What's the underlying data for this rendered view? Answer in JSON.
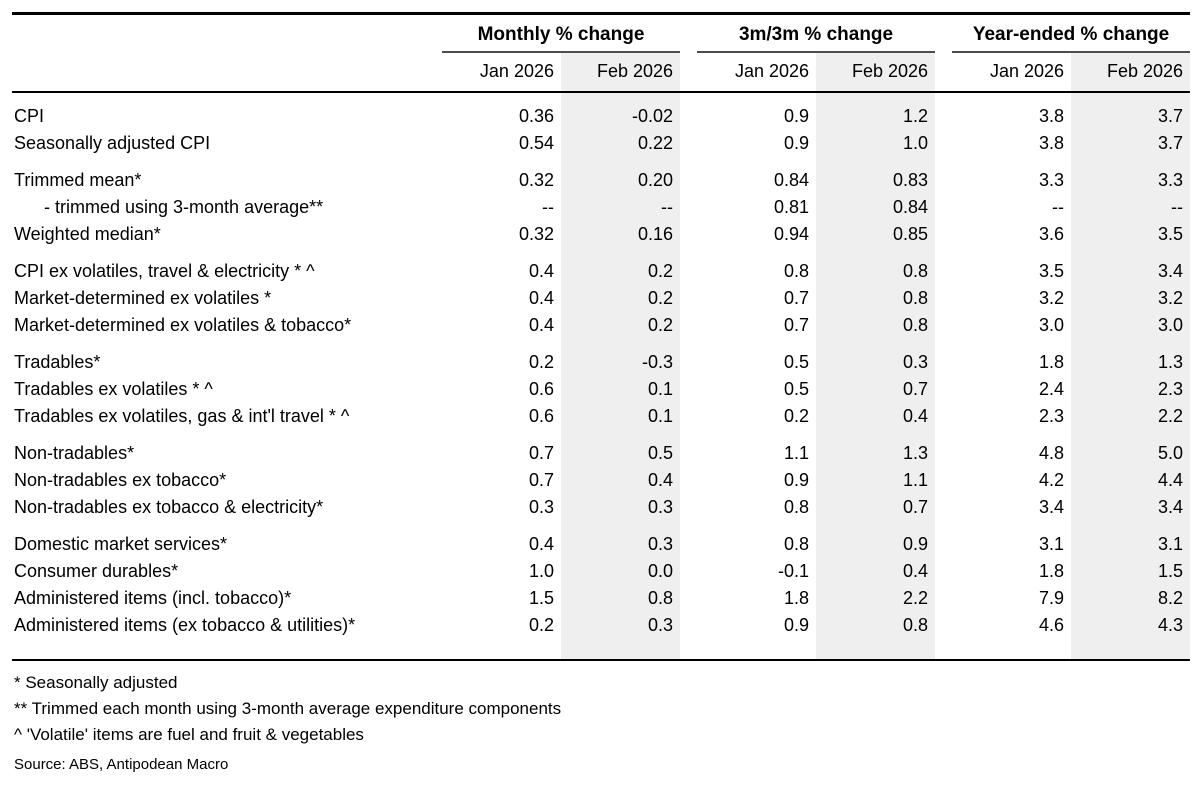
{
  "chart_data": {
    "type": "table",
    "column_groups": [
      {
        "label": "Monthly % change",
        "sub_columns": [
          "Jan 2026",
          "Feb 2026"
        ]
      },
      {
        "label": "3m/3m % change",
        "sub_columns": [
          "Jan 2026",
          "Feb 2026"
        ]
      },
      {
        "label": "Year-ended % change",
        "sub_columns": [
          "Jan 2026",
          "Feb 2026"
        ]
      }
    ],
    "sections": [
      {
        "rows": [
          {
            "label": "CPI",
            "indent": false,
            "values": [
              "0.36",
              "-0.02",
              "0.9",
              "1.2",
              "3.8",
              "3.7"
            ]
          },
          {
            "label": "Seasonally adjusted CPI",
            "indent": false,
            "values": [
              "0.54",
              "0.22",
              "0.9",
              "1.0",
              "3.8",
              "3.7"
            ]
          }
        ]
      },
      {
        "rows": [
          {
            "label": "Trimmed mean*",
            "indent": false,
            "values": [
              "0.32",
              "0.20",
              "0.84",
              "0.83",
              "3.3",
              "3.3"
            ]
          },
          {
            "label": "- trimmed using 3-month average**",
            "indent": true,
            "values": [
              "--",
              "--",
              "0.81",
              "0.84",
              "--",
              "--"
            ]
          },
          {
            "label": "Weighted median*",
            "indent": false,
            "values": [
              "0.32",
              "0.16",
              "0.94",
              "0.85",
              "3.6",
              "3.5"
            ]
          }
        ]
      },
      {
        "rows": [
          {
            "label": "CPI ex volatiles, travel & electricity * ^",
            "indent": false,
            "values": [
              "0.4",
              "0.2",
              "0.8",
              "0.8",
              "3.5",
              "3.4"
            ]
          },
          {
            "label": "Market-determined ex volatiles *",
            "indent": false,
            "values": [
              "0.4",
              "0.2",
              "0.7",
              "0.8",
              "3.2",
              "3.2"
            ]
          },
          {
            "label": "Market-determined ex volatiles & tobacco*",
            "indent": false,
            "values": [
              "0.4",
              "0.2",
              "0.7",
              "0.8",
              "3.0",
              "3.0"
            ]
          }
        ]
      },
      {
        "rows": [
          {
            "label": "Tradables*",
            "indent": false,
            "values": [
              "0.2",
              "-0.3",
              "0.5",
              "0.3",
              "1.8",
              "1.3"
            ]
          },
          {
            "label": "Tradables ex volatiles * ^",
            "indent": false,
            "values": [
              "0.6",
              "0.1",
              "0.5",
              "0.7",
              "2.4",
              "2.3"
            ]
          },
          {
            "label": "Tradables ex volatiles, gas & int'l travel * ^",
            "indent": false,
            "values": [
              "0.6",
              "0.1",
              "0.2",
              "0.4",
              "2.3",
              "2.2"
            ]
          }
        ]
      },
      {
        "rows": [
          {
            "label": "Non-tradables*",
            "indent": false,
            "values": [
              "0.7",
              "0.5",
              "1.1",
              "1.3",
              "4.8",
              "5.0"
            ]
          },
          {
            "label": "Non-tradables ex tobacco*",
            "indent": false,
            "values": [
              "0.7",
              "0.4",
              "0.9",
              "1.1",
              "4.2",
              "4.4"
            ]
          },
          {
            "label": "Non-tradables ex tobacco & electricity*",
            "indent": false,
            "values": [
              "0.3",
              "0.3",
              "0.8",
              "0.7",
              "3.4",
              "3.4"
            ]
          }
        ]
      },
      {
        "rows": [
          {
            "label": "Domestic market services*",
            "indent": false,
            "values": [
              "0.4",
              "0.3",
              "0.8",
              "0.9",
              "3.1",
              "3.1"
            ]
          },
          {
            "label": "Consumer durables*",
            "indent": false,
            "values": [
              "1.0",
              "0.0",
              "-0.1",
              "0.4",
              "1.8",
              "1.5"
            ]
          },
          {
            "label": "Administered items (incl. tobacco)*",
            "indent": false,
            "values": [
              "1.5",
              "0.8",
              "1.8",
              "2.2",
              "7.9",
              "8.2"
            ]
          },
          {
            "label": "Administered items (ex tobacco & utilities)*",
            "indent": false,
            "values": [
              "0.2",
              "0.3",
              "0.9",
              "0.8",
              "4.6",
              "4.3"
            ]
          }
        ]
      }
    ],
    "footnotes": [
      "* Seasonally adjusted",
      "** Trimmed each month using 3-month average expenditure components",
      "^ 'Volatile' items are fuel and fruit & vegetables"
    ],
    "source": "Source: ABS, Antipodean Macro",
    "layout": {
      "highlighted_sub_column": "Feb 2026",
      "highlight_color": "#efefef",
      "grid": "horizontal-rules-only",
      "value_alignment": "right"
    }
  },
  "colors": {
    "band": "#efefef",
    "rule_heavy": "#000000",
    "rule_group": "#4d4d4d",
    "text": "#000000",
    "background": "#ffffff"
  }
}
